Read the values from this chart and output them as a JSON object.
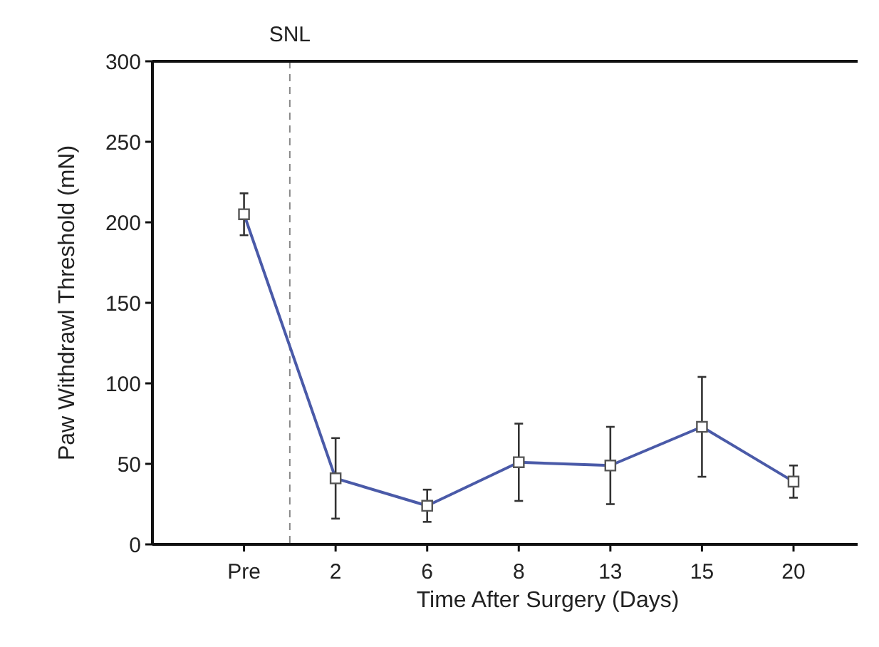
{
  "chart_data": {
    "type": "line",
    "xlabel": "Time After Surgery (Days)",
    "ylabel": "Paw Withdrawl Threshold (mN)",
    "categories": [
      "Pre",
      "2",
      "6",
      "8",
      "13",
      "15",
      "20"
    ],
    "series": [
      {
        "color": "#4a5aa8",
        "values": [
          205,
          41,
          24,
          51,
          49,
          73,
          39
        ],
        "errors": [
          13,
          25,
          10,
          24,
          24,
          31,
          10
        ]
      }
    ],
    "ylim": [
      0,
      300
    ],
    "yticks": [
      0,
      50,
      100,
      150,
      200,
      250,
      300
    ],
    "grid": false,
    "marker": "square",
    "line_style": "solid",
    "annotations": [
      "SNL"
    ]
  }
}
